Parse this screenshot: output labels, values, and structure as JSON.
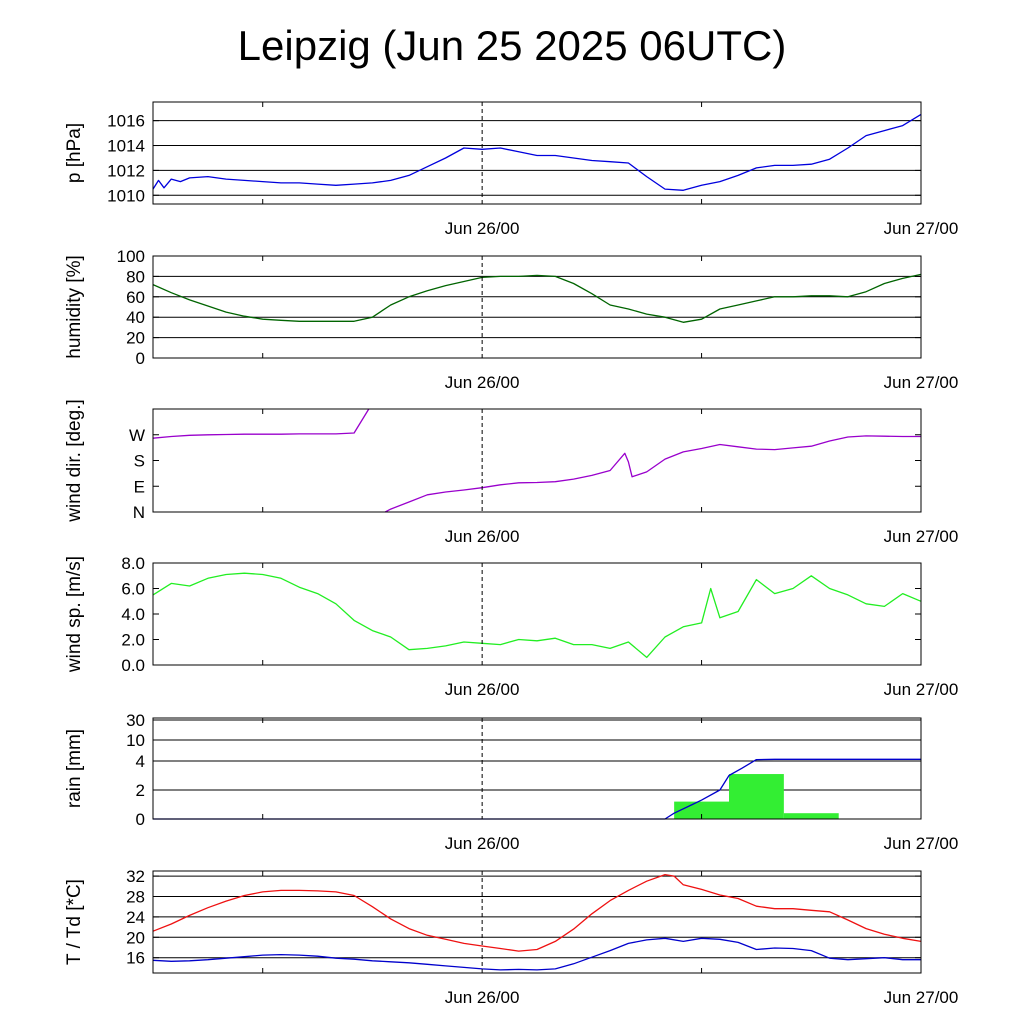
{
  "title": "Leipzig (Jun 25 2025 06UTC)",
  "colors": {
    "pressure": "#0000dd",
    "humidity": "#006400",
    "wind_dir": "#9900cc",
    "wind_speed": "#22ee22",
    "rain_bars": "#33ee33",
    "rain_cum": "#0000cc",
    "temperature": "#ee1111",
    "dewpoint": "#0000cc"
  },
  "chart_data": [
    {
      "type": "line",
      "ylabel": "p [hPa]",
      "xlim": [
        "Jun 25 06:00",
        "Jun 27 00:00"
      ],
      "xticks": [
        "Jun 26/00",
        "Jun 27/00"
      ],
      "ylim": [
        1009.3,
        1017.5
      ],
      "yticks": [
        1010,
        1012,
        1014,
        1016
      ],
      "ytick_labels": [
        "1010",
        "1012",
        "1014",
        "1016"
      ],
      "grid": "horizontal",
      "series": [
        {
          "key": "pressure",
          "x": [
            0,
            0.3,
            0.6,
            1,
            1.5,
            2,
            3,
            4,
            5,
            6,
            7,
            8,
            9,
            10,
            11,
            12,
            13,
            14,
            15,
            16,
            17,
            18,
            19,
            20,
            21,
            22,
            23,
            24,
            25,
            26,
            27,
            28,
            29,
            30,
            31,
            32,
            33,
            34,
            35,
            36,
            37,
            38,
            39,
            40,
            41,
            42
          ],
          "y": [
            1010.5,
            1011.2,
            1010.6,
            1011.3,
            1011.1,
            1011.4,
            1011.5,
            1011.3,
            1011.2,
            1011.1,
            1011.0,
            1011.0,
            1010.9,
            1010.8,
            1010.9,
            1011.0,
            1011.2,
            1011.6,
            1012.3,
            1013.0,
            1013.8,
            1013.7,
            1013.8,
            1013.5,
            1013.2,
            1013.2,
            1013.0,
            1012.8,
            1012.7,
            1012.6,
            1011.5,
            1010.5,
            1010.4,
            1010.8,
            1011.1,
            1011.6,
            1012.2,
            1012.4,
            1012.4,
            1012.5,
            1012.9,
            1013.8,
            1014.8,
            1015.2,
            1015.6,
            1016.5
          ]
        }
      ]
    },
    {
      "type": "line",
      "ylabel": "humidity [%]",
      "xlim": [
        "Jun 25 06:00",
        "Jun 27 00:00"
      ],
      "xticks": [
        "Jun 26/00",
        "Jun 27/00"
      ],
      "ylim": [
        0,
        100
      ],
      "yticks": [
        0,
        20,
        40,
        60,
        80,
        100
      ],
      "ytick_labels": [
        "0",
        "20",
        "40",
        "60",
        "80",
        "100"
      ],
      "grid": "horizontal",
      "series": [
        {
          "key": "humidity",
          "x": [
            0,
            1,
            2,
            3,
            4,
            5,
            6,
            7,
            8,
            9,
            10,
            11,
            12,
            13,
            14,
            15,
            16,
            17,
            18,
            19,
            20,
            21,
            22,
            23,
            24,
            25,
            26,
            27,
            28,
            29,
            30,
            31,
            32,
            33,
            34,
            35,
            36,
            37,
            38,
            39,
            40,
            41,
            42
          ],
          "y": [
            72,
            64,
            57,
            51,
            45,
            41,
            38,
            37,
            36,
            36,
            36,
            36,
            40,
            52,
            60,
            66,
            71,
            75,
            79,
            80,
            80,
            81,
            80,
            73,
            63,
            52,
            48,
            43,
            40,
            35,
            38,
            48,
            52,
            56,
            60,
            60,
            61,
            61,
            60,
            65,
            73,
            78,
            82
          ]
        }
      ]
    },
    {
      "type": "line",
      "ylabel": "wind dir. [deg.]",
      "xlim": [
        "Jun 25 06:00",
        "Jun 27 00:00"
      ],
      "xticks": [
        "Jun 26/00",
        "Jun 27/00"
      ],
      "ylim": [
        0,
        360
      ],
      "yticks": [
        0,
        90,
        180,
        270,
        360
      ],
      "ytick_labels": [
        "N",
        "E",
        "S",
        "W",
        ""
      ],
      "grid": "none",
      "series": [
        {
          "key": "wind_dir",
          "x": [
            0,
            1,
            2,
            3,
            4,
            5,
            6,
            7,
            8,
            9,
            10,
            11,
            11.8,
            12.7,
            13,
            14,
            15,
            16,
            17,
            18,
            19,
            20,
            21,
            22,
            23,
            24,
            25,
            25.8,
            26,
            26.2,
            27,
            28,
            29,
            30,
            31,
            32,
            33,
            34,
            35,
            36,
            37,
            38,
            39,
            40,
            41,
            42
          ],
          "y": [
            258,
            264,
            268,
            270,
            271,
            272,
            272,
            272,
            273,
            273,
            273,
            276,
            360,
            0,
            10,
            35,
            60,
            70,
            77,
            85,
            95,
            102,
            103,
            106,
            115,
            128,
            145,
            205,
            175,
            123,
            140,
            185,
            210,
            222,
            236,
            228,
            220,
            218,
            224,
            230,
            248,
            262,
            266,
            265,
            264,
            264
          ]
        }
      ]
    },
    {
      "type": "line",
      "ylabel": "wind sp. [m/s]",
      "xlim": [
        "Jun 25 06:00",
        "Jun 27 00:00"
      ],
      "xticks": [
        "Jun 26/00",
        "Jun 27/00"
      ],
      "ylim": [
        0,
        8
      ],
      "yticks": [
        0,
        2,
        4,
        6,
        8
      ],
      "ytick_labels": [
        "0.0",
        "2.0",
        "4.0",
        "6.0",
        "8.0"
      ],
      "grid": "none",
      "series": [
        {
          "key": "wind_speed",
          "x": [
            0,
            1,
            2,
            3,
            4,
            5,
            6,
            7,
            8,
            9,
            10,
            11,
            12,
            13,
            14,
            15,
            16,
            17,
            18,
            19,
            20,
            21,
            22,
            23,
            24,
            25,
            26,
            27,
            28,
            29,
            30,
            30.5,
            31,
            32,
            33,
            34,
            35,
            36,
            37,
            38,
            39,
            40,
            41,
            42
          ],
          "y": [
            5.5,
            6.4,
            6.2,
            6.8,
            7.1,
            7.2,
            7.1,
            6.8,
            6.1,
            5.6,
            4.8,
            3.5,
            2.7,
            2.2,
            1.2,
            1.3,
            1.5,
            1.8,
            1.7,
            1.6,
            2.0,
            1.9,
            2.1,
            1.6,
            1.6,
            1.3,
            1.8,
            0.6,
            2.2,
            3.0,
            3.3,
            6.0,
            3.7,
            4.2,
            6.7,
            5.6,
            6.0,
            7.0,
            6.0,
            5.5,
            4.8,
            4.6,
            5.6,
            5.0
          ]
        }
      ]
    },
    {
      "type": "bar",
      "ylabel": "rain [mm]",
      "xlim": [
        "Jun 25 06:00",
        "Jun 27 00:00"
      ],
      "xticks": [
        "Jun 26/00",
        "Jun 27/00"
      ],
      "ylim": [
        0,
        30
      ],
      "yticks": [
        0,
        2,
        4,
        10,
        30
      ],
      "ytick_labels": [
        "0",
        "2",
        "4",
        "10",
        "30"
      ],
      "grid": "horizontal",
      "bars": [
        {
          "x_start": 28.5,
          "x_end": 31.5,
          "value": 1.2
        },
        {
          "x_start": 31.5,
          "x_end": 34.5,
          "value": 3.1
        },
        {
          "x_start": 34.5,
          "x_end": 37.5,
          "value": 0.4
        }
      ],
      "series": [
        {
          "key": "rain_cum",
          "x": [
            0,
            28,
            28.5,
            29.5,
            30,
            31,
            31.5,
            32.2,
            33,
            34,
            35,
            36,
            38,
            40,
            42
          ],
          "y": [
            0,
            0,
            0.4,
            1.0,
            1.3,
            2.0,
            3.0,
            3.5,
            4.4,
            4.5,
            4.5,
            4.5,
            4.5,
            4.5,
            4.5
          ]
        }
      ]
    },
    {
      "type": "line",
      "ylabel": "T / Td [*C]",
      "xlim": [
        "Jun 25 06:00",
        "Jun 27 00:00"
      ],
      "xticks": [
        "Jun 26/00",
        "Jun 27/00"
      ],
      "ylim": [
        13,
        33
      ],
      "yticks": [
        16,
        20,
        24,
        28,
        32
      ],
      "ytick_labels": [
        "16",
        "20",
        "24",
        "28",
        "32"
      ],
      "grid": "horizontal",
      "series": [
        {
          "key": "temperature",
          "x": [
            0,
            1,
            2,
            3,
            4,
            5,
            6,
            7,
            8,
            9,
            10,
            11,
            12,
            13,
            14,
            15,
            16,
            17,
            18,
            19,
            20,
            21,
            22,
            23,
            24,
            25,
            26,
            27,
            28,
            28.5,
            29,
            30,
            31,
            32,
            33,
            34,
            35,
            36,
            37,
            38,
            39,
            40,
            41,
            42
          ],
          "y": [
            21.2,
            22.6,
            24.3,
            25.8,
            27.1,
            28.2,
            28.9,
            29.2,
            29.2,
            29.1,
            28.9,
            28.2,
            26.0,
            23.6,
            21.7,
            20.4,
            19.6,
            18.8,
            18.3,
            17.8,
            17.3,
            17.6,
            19.2,
            21.6,
            24.6,
            27.2,
            29.2,
            31.0,
            32.3,
            32.0,
            30.3,
            29.4,
            28.3,
            27.6,
            26.1,
            25.6,
            25.6,
            25.3,
            25.0,
            23.4,
            21.7,
            20.6,
            19.8,
            19.2
          ]
        },
        {
          "key": "dewpoint",
          "x": [
            0,
            1,
            2,
            3,
            4,
            5,
            6,
            7,
            8,
            9,
            10,
            11,
            12,
            13,
            14,
            15,
            16,
            17,
            18,
            19,
            20,
            21,
            22,
            23,
            24,
            25,
            26,
            27,
            28,
            29,
            30,
            31,
            32,
            33,
            34,
            35,
            36,
            37,
            38,
            39,
            40,
            41,
            42
          ],
          "y": [
            15.5,
            15.3,
            15.4,
            15.6,
            15.9,
            16.2,
            16.5,
            16.6,
            16.5,
            16.3,
            15.9,
            15.7,
            15.4,
            15.2,
            15.0,
            14.7,
            14.4,
            14.1,
            13.8,
            13.6,
            13.7,
            13.6,
            13.8,
            14.8,
            16.1,
            17.4,
            18.8,
            19.5,
            19.8,
            19.2,
            19.8,
            19.6,
            19.0,
            17.6,
            17.9,
            17.8,
            17.4,
            15.9,
            15.6,
            15.8,
            16.0,
            15.6,
            15.6
          ]
        }
      ]
    }
  ]
}
